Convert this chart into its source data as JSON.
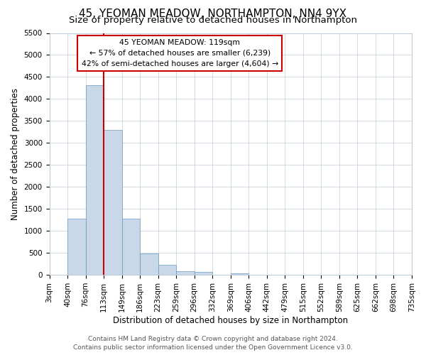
{
  "title": "45, YEOMAN MEADOW, NORTHAMPTON, NN4 9YX",
  "subtitle": "Size of property relative to detached houses in Northampton",
  "xlabel": "Distribution of detached houses by size in Northampton",
  "ylabel": "Number of detached properties",
  "bin_edges": [
    "3sqm",
    "40sqm",
    "76sqm",
    "113sqm",
    "149sqm",
    "186sqm",
    "223sqm",
    "259sqm",
    "296sqm",
    "332sqm",
    "369sqm",
    "406sqm",
    "442sqm",
    "479sqm",
    "515sqm",
    "552sqm",
    "589sqm",
    "625sqm",
    "662sqm",
    "698sqm",
    "735sqm"
  ],
  "bar_values": [
    0,
    1270,
    4320,
    3290,
    1280,
    480,
    230,
    80,
    60,
    0,
    40,
    0,
    0,
    0,
    0,
    0,
    0,
    0,
    0,
    0
  ],
  "bar_color": "#c8d8e8",
  "bar_edge_color": "#6699bb",
  "vline_x": 3,
  "vline_color": "#cc0000",
  "ylim": [
    0,
    5500
  ],
  "yticks": [
    0,
    500,
    1000,
    1500,
    2000,
    2500,
    3000,
    3500,
    4000,
    4500,
    5000,
    5500
  ],
  "annotation_title": "45 YEOMAN MEADOW: 119sqm",
  "annotation_line1": "← 57% of detached houses are smaller (6,239)",
  "annotation_line2": "42% of semi-detached houses are larger (4,604) →",
  "annotation_box_color": "#ffffff",
  "annotation_box_edge": "#cc0000",
  "footer1": "Contains HM Land Registry data © Crown copyright and database right 2024.",
  "footer2": "Contains public sector information licensed under the Open Government Licence v3.0.",
  "background_color": "#ffffff",
  "grid_color": "#c0ccd8",
  "title_fontsize": 11,
  "subtitle_fontsize": 9.5,
  "axis_label_fontsize": 8.5,
  "tick_fontsize": 7.5,
  "footer_fontsize": 6.5
}
